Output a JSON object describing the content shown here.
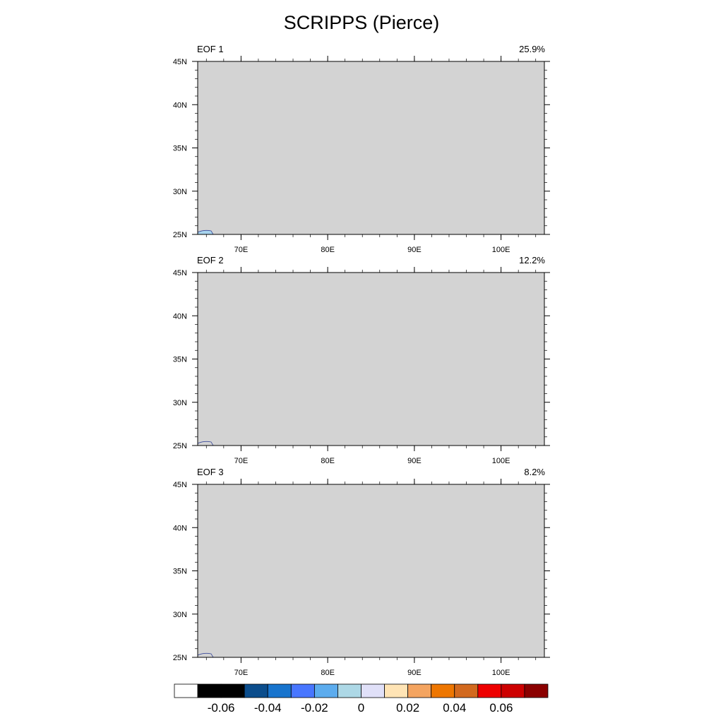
{
  "title": "SCRIPPS (Pierce)",
  "panels": [
    {
      "label": "EOF 1",
      "variance": "25.9%"
    },
    {
      "label": "EOF 2",
      "variance": "12.2%"
    },
    {
      "label": "EOF 3",
      "variance": "8.2%"
    }
  ],
  "axes": {
    "lon_range": [
      65,
      105
    ],
    "lat_range": [
      25,
      45
    ],
    "lon_ticks": [
      {
        "value": 70,
        "label": "70E"
      },
      {
        "value": 80,
        "label": "80E"
      },
      {
        "value": 90,
        "label": "90E"
      },
      {
        "value": 100,
        "label": "100E"
      }
    ],
    "lat_ticks": [
      {
        "value": 45,
        "label": "45N"
      },
      {
        "value": 40,
        "label": "40N"
      },
      {
        "value": 35,
        "label": "35N"
      },
      {
        "value": 30,
        "label": "30N"
      },
      {
        "value": 25,
        "label": "25N"
      }
    ]
  },
  "map_fill_color": "#d3d3d3",
  "colorbar": {
    "colors": [
      "#ffffff",
      "#000000",
      "#000000",
      "#0b4d8c",
      "#1874cd",
      "#4876ff",
      "#5cacee",
      "#add8e6",
      "#e0e0f8",
      "#ffe4b5",
      "#f4a460",
      "#ee7600",
      "#d2691e",
      "#ee0000",
      "#cd0000",
      "#8b0000"
    ],
    "labels": [
      {
        "text": "-0.06",
        "boundary": 2
      },
      {
        "text": "-0.04",
        "boundary": 4
      },
      {
        "text": "-0.02",
        "boundary": 6
      },
      {
        "text": "0",
        "boundary": 8
      },
      {
        "text": "0.02",
        "boundary": 10
      },
      {
        "text": "0.04",
        "boundary": 12
      },
      {
        "text": "0.06",
        "boundary": 14
      }
    ]
  }
}
